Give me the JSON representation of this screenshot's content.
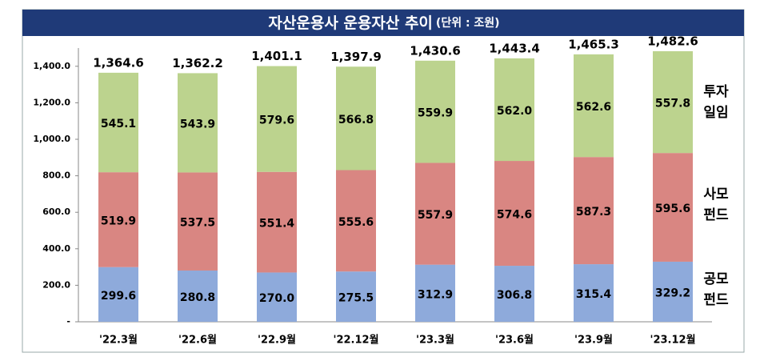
{
  "chart_data": {
    "type": "stacked_bar",
    "title": "자산운용사 운용자산 추이",
    "unit": "(단위 : 조원)",
    "categories": [
      "'22.3월",
      "'22.6월",
      "'22.9월",
      "'22.12월",
      "'23.3월",
      "'23.6월",
      "'23.9월",
      "'23.12월"
    ],
    "series": [
      {
        "name": "공모펀드",
        "color": "#8eaadb",
        "values": [
          299.6,
          280.8,
          270.0,
          275.5,
          312.9,
          306.8,
          315.4,
          329.2
        ],
        "value_labels": [
          "299.6",
          "280.8",
          "270.0",
          "275.5",
          "312.9",
          "306.8",
          "315.4",
          "329.2"
        ]
      },
      {
        "name": "사모펀드",
        "color": "#d98682",
        "values": [
          519.9,
          537.5,
          551.4,
          555.6,
          557.9,
          574.6,
          587.3,
          595.6
        ],
        "value_labels": [
          "519.9",
          "537.5",
          "551.4",
          "555.6",
          "557.9",
          "574.6",
          "587.3",
          "595.6"
        ]
      },
      {
        "name": "투자일임",
        "color": "#bcd38e",
        "values": [
          545.1,
          543.9,
          579.6,
          566.8,
          559.9,
          562.0,
          562.6,
          557.8
        ],
        "value_labels": [
          "545.1",
          "543.9",
          "579.6",
          "566.8",
          "559.9",
          "562.0",
          "562.6",
          "557.8"
        ]
      }
    ],
    "totals": {
      "values": [
        1364.6,
        1362.2,
        1401.1,
        1397.9,
        1430.6,
        1443.4,
        1465.3,
        1482.6
      ],
      "value_labels": [
        "1,364.6",
        "1,362.2",
        "1,401.1",
        "1,397.9",
        "1,430.6",
        "1,443.4",
        "1,465.3",
        "1,482.6"
      ]
    },
    "ylim": [
      0,
      1500
    ],
    "yticks": [
      {
        "value": 0,
        "label": "-"
      },
      {
        "value": 200,
        "label": "200.0"
      },
      {
        "value": 400,
        "label": "400.0"
      },
      {
        "value": 600,
        "label": "600.0"
      },
      {
        "value": 800,
        "label": "800.0"
      },
      {
        "value": 1000,
        "label": "1,000.0"
      },
      {
        "value": 1200,
        "label": "1,200.0"
      },
      {
        "value": 1400,
        "label": "1,400.0"
      }
    ],
    "grid": false
  }
}
